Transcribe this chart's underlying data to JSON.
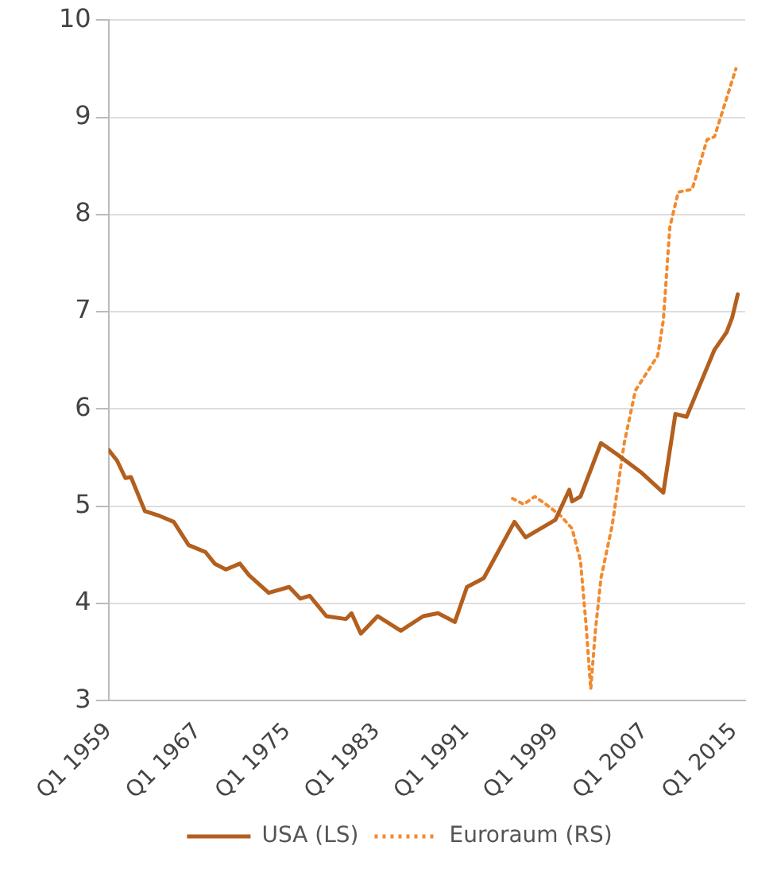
{
  "chart_data": {
    "type": "line",
    "x": [
      "1959-01",
      "1959-10",
      "1960-07",
      "1961-01",
      "1962-04",
      "1963-08",
      "1964-11",
      "1966-03",
      "1967-09",
      "1968-07",
      "1969-07",
      "1970-10",
      "1971-08",
      "1973-05",
      "1975-03",
      "1976-03",
      "1977-01",
      "1978-07",
      "1980-04",
      "1980-10",
      "1981-08",
      "1983-02",
      "1985-03",
      "1987-03",
      "1988-07",
      "1990-01",
      "1991-02",
      "1992-08",
      "1995-05",
      "1996-05",
      "1999-01",
      "2000-04",
      "2000-07",
      "2001-04",
      "2003-02",
      "2004-08",
      "2006-09",
      "2008-09",
      "2009-10",
      "2010-10",
      "2013-04",
      "2014-05",
      "2014-11",
      "2015-05"
    ],
    "series": [
      {
        "name": "USA (LS)",
        "color": "#b35f1e",
        "line_style": "solid",
        "values": [
          5.58,
          5.47,
          5.29,
          5.3,
          4.95,
          4.9,
          4.84,
          4.6,
          4.53,
          4.41,
          4.35,
          4.41,
          4.29,
          4.11,
          4.17,
          4.05,
          4.08,
          3.87,
          3.84,
          3.9,
          3.69,
          3.87,
          3.72,
          3.87,
          3.9,
          3.81,
          4.17,
          4.26,
          4.84,
          4.68,
          4.86,
          5.17,
          5.05,
          5.1,
          5.65,
          5.53,
          5.35,
          5.14,
          5.95,
          5.92,
          6.61,
          6.79,
          6.94,
          7.18
        ]
      },
      {
        "name": "Euroraum (RS)",
        "color": "#f28a2e",
        "line_style": "dotted",
        "x": [
          "1995-03",
          "1996-03",
          "1997-03",
          "1998-03",
          "1999-07",
          "2000-07",
          "2001-04",
          "2001-10",
          "2002-03",
          "2002-08",
          "2003-02",
          "2004-02",
          "2005-03",
          "2006-03",
          "2008-03",
          "2008-09",
          "2009-04",
          "2010-01",
          "2011-04",
          "2012-08",
          "2013-04",
          "2015-03"
        ],
        "values": [
          5.08,
          5.02,
          5.1,
          5.02,
          4.9,
          4.77,
          4.44,
          3.78,
          3.12,
          3.72,
          4.26,
          4.8,
          5.65,
          6.19,
          6.55,
          6.91,
          7.87,
          8.23,
          8.26,
          8.77,
          8.8,
          9.5
        ]
      }
    ],
    "xlim": [
      "1959-01",
      "2016-01"
    ],
    "xticks": [
      {
        "value": "1959-01",
        "label": "Q1 1959"
      },
      {
        "value": "1967-01",
        "label": "Q1 1967"
      },
      {
        "value": "1975-01",
        "label": "Q1 1975"
      },
      {
        "value": "1983-01",
        "label": "Q1 1983"
      },
      {
        "value": "1991-01",
        "label": "Q1 1991"
      },
      {
        "value": "1999-01",
        "label": "Q1 1999"
      },
      {
        "value": "2007-01",
        "label": "Q1 2007"
      },
      {
        "value": "2015-01",
        "label": "Q1 2015"
      }
    ],
    "ylim": [
      3,
      10
    ],
    "yticks": [
      3,
      4,
      5,
      6,
      7,
      8,
      9,
      10
    ],
    "grid": "y",
    "legend": "bottom",
    "marker": "none"
  }
}
